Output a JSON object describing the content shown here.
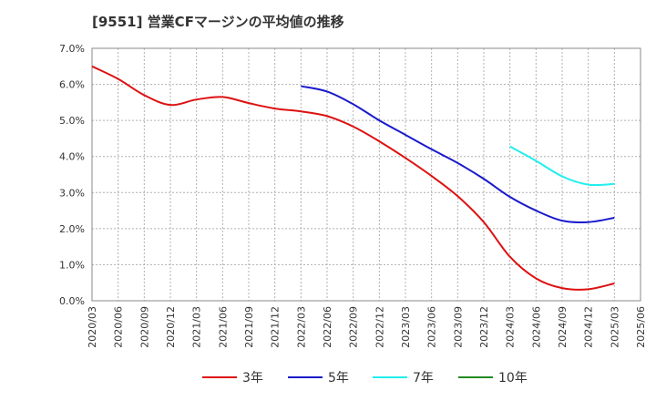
{
  "chart_data": {
    "type": "line",
    "title": "[9551]  営業CFマージンの平均値の推移",
    "ylim": [
      0,
      7.0
    ],
    "y_ticks": [
      "0.0%",
      "1.0%",
      "2.0%",
      "3.0%",
      "4.0%",
      "5.0%",
      "6.0%",
      "7.0%"
    ],
    "x": [
      "2020/03",
      "2020/06",
      "2020/09",
      "2020/12",
      "2021/03",
      "2021/06",
      "2021/09",
      "2021/12",
      "2022/03",
      "2022/06",
      "2022/09",
      "2022/12",
      "2023/03",
      "2023/06",
      "2023/09",
      "2023/12",
      "2024/03",
      "2024/06",
      "2024/09",
      "2024/12",
      "2025/03",
      "2025/06"
    ],
    "grid": true,
    "legend_position": "bottom",
    "series": [
      {
        "name": "3年",
        "color": "#dd1111",
        "values": [
          6.5,
          6.15,
          5.7,
          5.43,
          5.58,
          5.65,
          5.48,
          5.33,
          5.25,
          5.12,
          4.83,
          4.42,
          3.96,
          3.46,
          2.9,
          2.18,
          1.22,
          0.62,
          0.35,
          0.32,
          0.48,
          null
        ]
      },
      {
        "name": "5年",
        "color": "#1a1acc",
        "values": [
          null,
          null,
          null,
          null,
          null,
          null,
          null,
          null,
          5.95,
          5.8,
          5.45,
          5.0,
          4.6,
          4.2,
          3.82,
          3.38,
          2.88,
          2.5,
          2.22,
          2.18,
          2.3,
          null
        ]
      },
      {
        "name": "7年",
        "color": "#22eeee",
        "values": [
          null,
          null,
          null,
          null,
          null,
          null,
          null,
          null,
          null,
          null,
          null,
          null,
          null,
          null,
          null,
          null,
          4.28,
          3.88,
          3.45,
          3.22,
          3.24,
          null
        ]
      },
      {
        "name": "10年",
        "color": "#228b22",
        "values": [
          null,
          null,
          null,
          null,
          null,
          null,
          null,
          null,
          null,
          null,
          null,
          null,
          null,
          null,
          null,
          null,
          null,
          null,
          null,
          null,
          null,
          null
        ]
      }
    ]
  }
}
